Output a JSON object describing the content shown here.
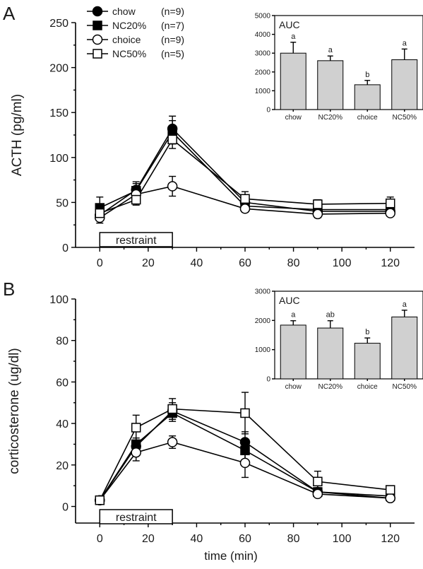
{
  "panels": [
    {
      "panel_label": "A",
      "show_legend": true,
      "legend": [
        {
          "name": "chow",
          "n": "(n=9)"
        },
        {
          "name": "NC20%",
          "n": "(n=7)"
        },
        {
          "name": "choice",
          "n": "(n=9)"
        },
        {
          "name": "NC50%",
          "n": "(n=5)"
        }
      ],
      "restraint_label": "restraint",
      "inset_title": "AUC"
    },
    {
      "panel_label": "B",
      "show_legend": false,
      "legend": [],
      "restraint_label": "restraint",
      "inset_title": "AUC"
    }
  ],
  "chart_data": [
    {
      "type": "line",
      "title": "",
      "xlabel": "",
      "ylabel": "ACTH (pg/ml)",
      "xlim": [
        -10,
        130
      ],
      "ylim": [
        0,
        250
      ],
      "xticks": [
        0,
        20,
        40,
        60,
        80,
        100,
        120
      ],
      "yticks": [
        0,
        50,
        100,
        150,
        200,
        250
      ],
      "restraint_interval": [
        0,
        30
      ],
      "grid": false,
      "legend_position": "top-left",
      "series": [
        {
          "name": "chow",
          "marker": "filled-circle",
          "x": [
            0,
            15,
            30,
            60,
            90,
            120
          ],
          "y": [
            36,
            64,
            132,
            50,
            40,
            40
          ],
          "err": [
            6,
            7,
            14,
            6,
            4,
            4
          ]
        },
        {
          "name": "NC20%",
          "marker": "filled-square",
          "x": [
            0,
            15,
            30,
            60,
            90,
            120
          ],
          "y": [
            44,
            63,
            128,
            46,
            42,
            42
          ],
          "err": [
            12,
            10,
            13,
            6,
            5,
            5
          ]
        },
        {
          "name": "choice",
          "marker": "open-circle",
          "x": [
            0,
            15,
            30,
            60,
            90,
            120
          ],
          "y": [
            33,
            59,
            68,
            43,
            37,
            38
          ],
          "err": [
            6,
            6,
            11,
            4,
            4,
            3
          ]
        },
        {
          "name": "NC50%",
          "marker": "open-square",
          "x": [
            0,
            15,
            30,
            60,
            90,
            120
          ],
          "y": [
            38,
            53,
            120,
            54,
            48,
            49
          ],
          "err": [
            8,
            6,
            10,
            8,
            5,
            7
          ]
        }
      ]
    },
    {
      "type": "bar",
      "title": "AUC",
      "categories": [
        "chow",
        "NC20%",
        "choice",
        "NC50%"
      ],
      "values": [
        3000,
        2600,
        1320,
        2650
      ],
      "err": [
        580,
        250,
        230,
        570
      ],
      "letters": [
        "a",
        "a",
        "b",
        "a"
      ],
      "ylim": [
        0,
        5000
      ],
      "yticks": [
        0,
        1000,
        2000,
        3000,
        4000,
        5000
      ]
    },
    {
      "type": "line",
      "title": "",
      "xlabel": "time (min)",
      "ylabel": "corticosterone (ug/dl)",
      "xlim": [
        -10,
        130
      ],
      "ylim": [
        -8,
        100
      ],
      "xticks": [
        0,
        20,
        40,
        60,
        80,
        100,
        120
      ],
      "yticks": [
        0,
        20,
        40,
        60,
        80,
        100
      ],
      "restraint_interval": [
        0,
        30
      ],
      "grid": false,
      "series": [
        {
          "name": "chow",
          "marker": "filled-circle",
          "x": [
            0,
            15,
            30,
            60,
            90,
            120
          ],
          "y": [
            3,
            29,
            46,
            31,
            7,
            4
          ],
          "err": [
            1,
            3,
            4,
            5,
            2,
            1
          ]
        },
        {
          "name": "NC20%",
          "marker": "filled-square",
          "x": [
            0,
            15,
            30,
            60,
            90,
            120
          ],
          "y": [
            3,
            30,
            45,
            27,
            7,
            5
          ],
          "err": [
            1,
            3,
            4,
            5,
            2,
            1
          ]
        },
        {
          "name": "choice",
          "marker": "open-circle",
          "x": [
            0,
            15,
            30,
            60,
            90,
            120
          ],
          "y": [
            3,
            26,
            31,
            21,
            6,
            4
          ],
          "err": [
            1,
            4,
            3,
            7,
            1,
            1
          ]
        },
        {
          "name": "NC50%",
          "marker": "open-square",
          "x": [
            0,
            15,
            30,
            60,
            90,
            120
          ],
          "y": [
            3,
            38,
            47,
            45,
            12,
            8
          ],
          "err": [
            1,
            6,
            5,
            10,
            5,
            2
          ]
        }
      ]
    },
    {
      "type": "bar",
      "title": "AUC",
      "categories": [
        "chow",
        "NC20%",
        "choice",
        "NC50%"
      ],
      "values": [
        1840,
        1740,
        1220,
        2120
      ],
      "err": [
        150,
        250,
        180,
        230
      ],
      "letters": [
        "a",
        "ab",
        "b",
        "a"
      ],
      "ylim": [
        0,
        3000
      ],
      "yticks": [
        0,
        1000,
        2000,
        3000
      ]
    }
  ]
}
